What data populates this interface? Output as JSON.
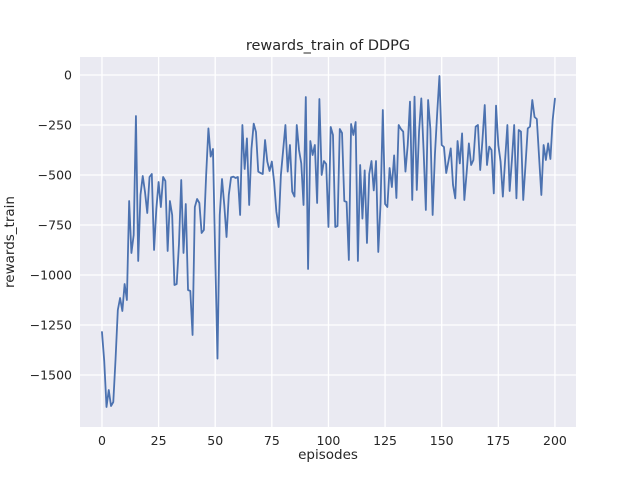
{
  "chart_data": {
    "type": "line",
    "title": "rewards_train of DDPG",
    "xlabel": "episodes",
    "ylabel": "rewards_train",
    "x_ticks": [
      0,
      25,
      50,
      75,
      100,
      125,
      150,
      175,
      200
    ],
    "y_ticks": [
      0,
      -250,
      -500,
      -750,
      -1000,
      -1250,
      -1500
    ],
    "xlim": [
      -9.7,
      209.3
    ],
    "ylim": [
      -1760,
      90
    ],
    "grid": true,
    "legend": "none",
    "style": "seaborn-darkgrid",
    "background_color": "#EAEAF2",
    "gridline_color": "#FFFFFF",
    "line_color": "#4C72B0",
    "text_color": "#262626",
    "series": [
      {
        "name": "rewards_train",
        "x_start": 0,
        "x_step": 1,
        "y": [
          -1285,
          -1430,
          -1660,
          -1575,
          -1655,
          -1635,
          -1420,
          -1175,
          -1115,
          -1180,
          -1045,
          -1125,
          -630,
          -890,
          -800,
          -205,
          -930,
          -600,
          -505,
          -585,
          -690,
          -510,
          -495,
          -875,
          -670,
          -535,
          -660,
          -510,
          -530,
          -880,
          -630,
          -700,
          -1050,
          -1045,
          -845,
          -525,
          -890,
          -645,
          -1075,
          -1080,
          -1300,
          -660,
          -620,
          -640,
          -790,
          -775,
          -500,
          -267,
          -408,
          -370,
          -900,
          -1418,
          -700,
          -520,
          -650,
          -810,
          -600,
          -512,
          -508,
          -515,
          -510,
          -700,
          -250,
          -470,
          -317,
          -650,
          -370,
          -243,
          -285,
          -483,
          -490,
          -495,
          -325,
          -433,
          -480,
          -433,
          -533,
          -683,
          -760,
          -500,
          -375,
          -250,
          -483,
          -350,
          -583,
          -608,
          -250,
          -375,
          -442,
          -650,
          -110,
          -970,
          -330,
          -400,
          -350,
          -640,
          -120,
          -500,
          -430,
          -445,
          -760,
          -260,
          -300,
          -760,
          -755,
          -270,
          -290,
          -630,
          -635,
          -925,
          -245,
          -300,
          -235,
          -930,
          -450,
          -718,
          -477,
          -840,
          -495,
          -430,
          -577,
          -430,
          -885,
          -645,
          -175,
          -645,
          -660,
          -465,
          -560,
          -402,
          -615,
          -250,
          -270,
          -283,
          -483,
          -350,
          -133,
          -625,
          -108,
          -575,
          -283,
          -117,
          -375,
          -675,
          -125,
          -270,
          -700,
          -400,
          -192,
          -5,
          -350,
          -360,
          -490,
          -430,
          -367,
          -550,
          -617,
          -330,
          -442,
          -292,
          -625,
          -490,
          -342,
          -450,
          -425,
          -258,
          -250,
          -475,
          -325,
          -150,
          -450,
          -358,
          -375,
          -592,
          -153,
          -350,
          -433,
          -608,
          -425,
          -250,
          -580,
          -425,
          -250,
          -617,
          -275,
          -283,
          -625,
          -450,
          -267,
          -258,
          -125,
          -210,
          -220,
          -410,
          -600,
          -350,
          -425,
          -342,
          -420,
          -225,
          -118
        ]
      }
    ]
  }
}
